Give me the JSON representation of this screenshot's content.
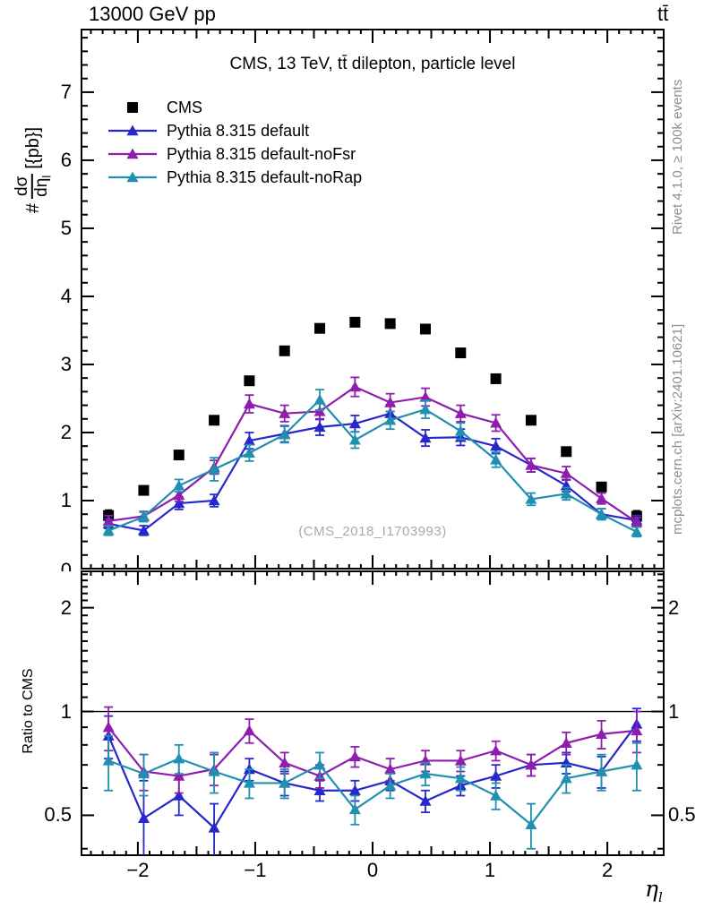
{
  "header": {
    "left_label": "13000 GeV pp",
    "right_label": "tt̄"
  },
  "watermark": "(CMS_2018_I1703993)",
  "side_notes": {
    "top_rotated": "Rivet 4.1.0, ≥ 100k events",
    "bottom_rotated": "mcplots.cern.ch [arXiv:2401.10621]"
  },
  "chart_data": {
    "type": "line",
    "title": "CMS, 13 TeV, tt̄ dilepton, particle level",
    "y_axis_label": {
      "prefix": "#",
      "frac_numerator": "dσ",
      "frac_denominator": "dη",
      "frac_denominator_sub": "l",
      "suffix": "[{pb}]"
    },
    "x_axis_label": {
      "symbol": "η",
      "subscript": "l"
    },
    "ratio_label": "Ratio to CMS",
    "xlim": [
      -2.48,
      2.48
    ],
    "main_ylim": [
      0,
      7.92
    ],
    "ratio_ylim": [
      0.383,
      2.55
    ],
    "ratio_yscale": "log",
    "ratio_reference": 1,
    "grid": false,
    "legend_position": "top-left-inside",
    "bin_width": 0.3,
    "x": [
      -2.25,
      -1.95,
      -1.65,
      -1.35,
      -1.05,
      -0.75,
      -0.45,
      -0.15,
      0.15,
      0.45,
      0.75,
      1.05,
      1.35,
      1.65,
      1.95,
      2.25
    ],
    "ticks": {
      "main_y": {
        "values": [
          0,
          1,
          2,
          3,
          4,
          5,
          6,
          7
        ],
        "labels": [
          "0",
          "1",
          "2",
          "3",
          "4",
          "5",
          "6",
          "7"
        ]
      },
      "x": {
        "values": [
          -2,
          -1,
          0,
          1,
          2
        ],
        "labels": [
          "−2",
          "−1",
          "0",
          "1",
          "2"
        ]
      },
      "ratio_y": {
        "values": [
          0.5,
          1,
          2
        ],
        "labels": [
          "0.5",
          "1",
          "2"
        ]
      }
    },
    "series": [
      {
        "id": "cms",
        "name": "CMS",
        "marker": "square",
        "color": "#000000",
        "draw_line": false,
        "values": [
          0.78,
          1.15,
          1.67,
          2.18,
          2.76,
          3.2,
          3.53,
          3.62,
          3.6,
          3.52,
          3.17,
          2.79,
          2.18,
          1.72,
          1.2,
          0.77
        ],
        "errors": [
          0.08,
          0.05,
          0.05,
          0.05,
          0.05,
          0.05,
          0.05,
          0.05,
          0.05,
          0.05,
          0.05,
          0.05,
          0.05,
          0.05,
          0.05,
          0.08
        ]
      },
      {
        "id": "pythia-default",
        "name": "Pythia 8.315 default",
        "marker": "triangle",
        "color": "#2727cc",
        "draw_line": true,
        "values": [
          0.66,
          0.56,
          0.96,
          1.0,
          1.88,
          1.98,
          2.08,
          2.13,
          2.28,
          1.92,
          1.93,
          1.8,
          1.52,
          1.22,
          0.8,
          0.71
        ],
        "errors": [
          0.07,
          0.07,
          0.09,
          0.09,
          0.12,
          0.12,
          0.12,
          0.12,
          0.13,
          0.12,
          0.12,
          0.11,
          0.1,
          0.09,
          0.08,
          0.07
        ],
        "ratio": [
          0.85,
          0.49,
          0.57,
          0.46,
          0.68,
          0.62,
          0.59,
          0.59,
          0.63,
          0.55,
          0.61,
          0.65,
          0.7,
          0.71,
          0.67,
          0.92
        ],
        "ratio_errors": [
          0.12,
          0.14,
          0.07,
          0.08,
          0.05,
          0.05,
          0.04,
          0.04,
          0.04,
          0.04,
          0.04,
          0.05,
          0.05,
          0.05,
          0.07,
          0.1
        ]
      },
      {
        "id": "pythia-nofsr",
        "name": "Pythia 8.315 default-noFsr",
        "marker": "triangle",
        "color": "#8f1dae",
        "draw_line": true,
        "values": [
          0.7,
          0.77,
          1.08,
          1.49,
          2.42,
          2.28,
          2.31,
          2.67,
          2.44,
          2.52,
          2.28,
          2.14,
          1.52,
          1.4,
          1.03,
          0.68
        ],
        "errors": [
          0.08,
          0.07,
          0.09,
          0.1,
          0.13,
          0.12,
          0.12,
          0.14,
          0.13,
          0.13,
          0.12,
          0.12,
          0.1,
          0.1,
          0.08,
          0.07
        ],
        "ratio": [
          0.9,
          0.67,
          0.65,
          0.68,
          0.88,
          0.71,
          0.65,
          0.74,
          0.68,
          0.72,
          0.72,
          0.77,
          0.7,
          0.81,
          0.86,
          0.88
        ],
        "ratio_errors": [
          0.13,
          0.08,
          0.07,
          0.07,
          0.07,
          0.05,
          0.05,
          0.05,
          0.05,
          0.05,
          0.05,
          0.05,
          0.05,
          0.06,
          0.08,
          0.12
        ]
      },
      {
        "id": "pythia-norap",
        "name": "Pythia 8.315 default-noRap",
        "marker": "triangle",
        "color": "#2090b0",
        "draw_line": true,
        "values": [
          0.56,
          0.76,
          1.22,
          1.46,
          1.7,
          1.97,
          2.48,
          1.89,
          2.18,
          2.34,
          2.02,
          1.6,
          1.02,
          1.1,
          0.8,
          0.54
        ],
        "errors": [
          0.07,
          0.07,
          0.09,
          0.17,
          0.12,
          0.12,
          0.15,
          0.12,
          0.13,
          0.13,
          0.12,
          0.11,
          0.09,
          0.09,
          0.08,
          0.07
        ],
        "ratio": [
          0.72,
          0.66,
          0.73,
          0.67,
          0.62,
          0.62,
          0.7,
          0.52,
          0.61,
          0.66,
          0.64,
          0.57,
          0.47,
          0.64,
          0.67,
          0.7
        ],
        "ratio_errors": [
          0.13,
          0.09,
          0.07,
          0.09,
          0.06,
          0.06,
          0.06,
          0.05,
          0.05,
          0.05,
          0.05,
          0.05,
          0.07,
          0.06,
          0.08,
          0.11
        ]
      }
    ]
  }
}
